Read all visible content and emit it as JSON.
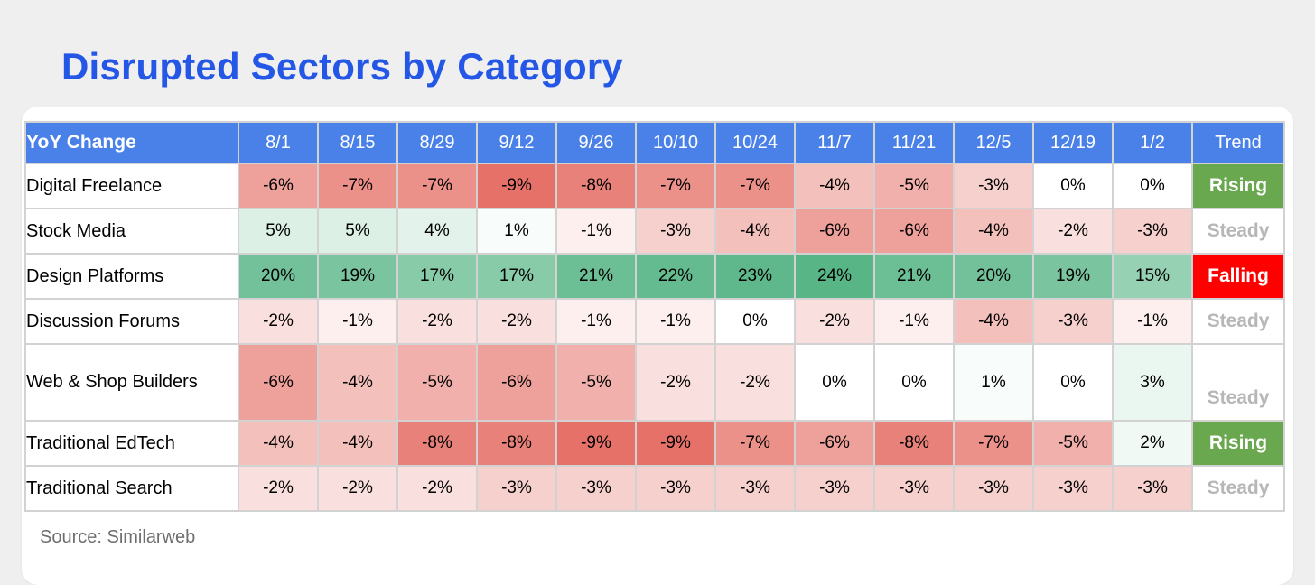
{
  "title": "Disrupted Sectors by Category",
  "source": "Source: Similarweb",
  "colors": {
    "title": "#2457e6",
    "header_bg": "#4a81e8",
    "header_text": "#ffffff",
    "cell_border": "#d2d2d2",
    "card_bg": "#ffffff",
    "page_bg": "#efefef"
  },
  "trend_styles": {
    "Rising": {
      "bg": "#6aa84f",
      "text": "#ffffff"
    },
    "Steady": {
      "bg": "#ffffff",
      "text": "#b7b7b7"
    },
    "Falling": {
      "bg": "#ff0000",
      "text": "#ffffff"
    }
  },
  "chart_data": {
    "type": "heatmap",
    "title": "Disrupted Sectors by Category",
    "corner_label": "YoY Change",
    "trend_label": "Trend",
    "value_suffix": "%",
    "x_labels": [
      "8/1",
      "8/15",
      "8/29",
      "9/12",
      "9/26",
      "10/10",
      "10/24",
      "11/7",
      "11/21",
      "12/5",
      "12/19",
      "1/2"
    ],
    "color_scale": {
      "min": -9,
      "max": 24,
      "negative": "#e57168",
      "neutral": "#ffffff",
      "positive": "#57b586"
    },
    "rows": [
      {
        "label": "Digital Freelance",
        "values": [
          -6,
          -7,
          -7,
          -9,
          -8,
          -7,
          -7,
          -4,
          -5,
          -3,
          0,
          0
        ],
        "trend": "Rising",
        "tall": false
      },
      {
        "label": "Stock Media",
        "values": [
          5,
          5,
          4,
          1,
          -1,
          -3,
          -4,
          -6,
          -6,
          -4,
          -2,
          -3
        ],
        "trend": "Steady",
        "tall": false
      },
      {
        "label": "Design Platforms",
        "values": [
          20,
          19,
          17,
          17,
          21,
          22,
          23,
          24,
          21,
          20,
          19,
          15
        ],
        "trend": "Falling",
        "tall": false
      },
      {
        "label": "Discussion Forums",
        "values": [
          -2,
          -1,
          -2,
          -2,
          -1,
          -1,
          0,
          -2,
          -1,
          -4,
          -3,
          -1
        ],
        "trend": "Steady",
        "tall": false
      },
      {
        "label": "Web & Shop Builders",
        "values": [
          -6,
          -4,
          -5,
          -6,
          -5,
          -2,
          -2,
          0,
          0,
          1,
          0,
          3
        ],
        "trend": "Steady",
        "tall": true
      },
      {
        "label": "Traditional EdTech",
        "values": [
          -4,
          -4,
          -8,
          -8,
          -9,
          -9,
          -7,
          -6,
          -8,
          -7,
          -5,
          2
        ],
        "trend": "Rising",
        "tall": false
      },
      {
        "label": "Traditional Search",
        "values": [
          -2,
          -2,
          -2,
          -3,
          -3,
          -3,
          -3,
          -3,
          -3,
          -3,
          -3,
          -3
        ],
        "trend": "Steady",
        "tall": false
      }
    ],
    "source": "Source: Similarweb"
  }
}
